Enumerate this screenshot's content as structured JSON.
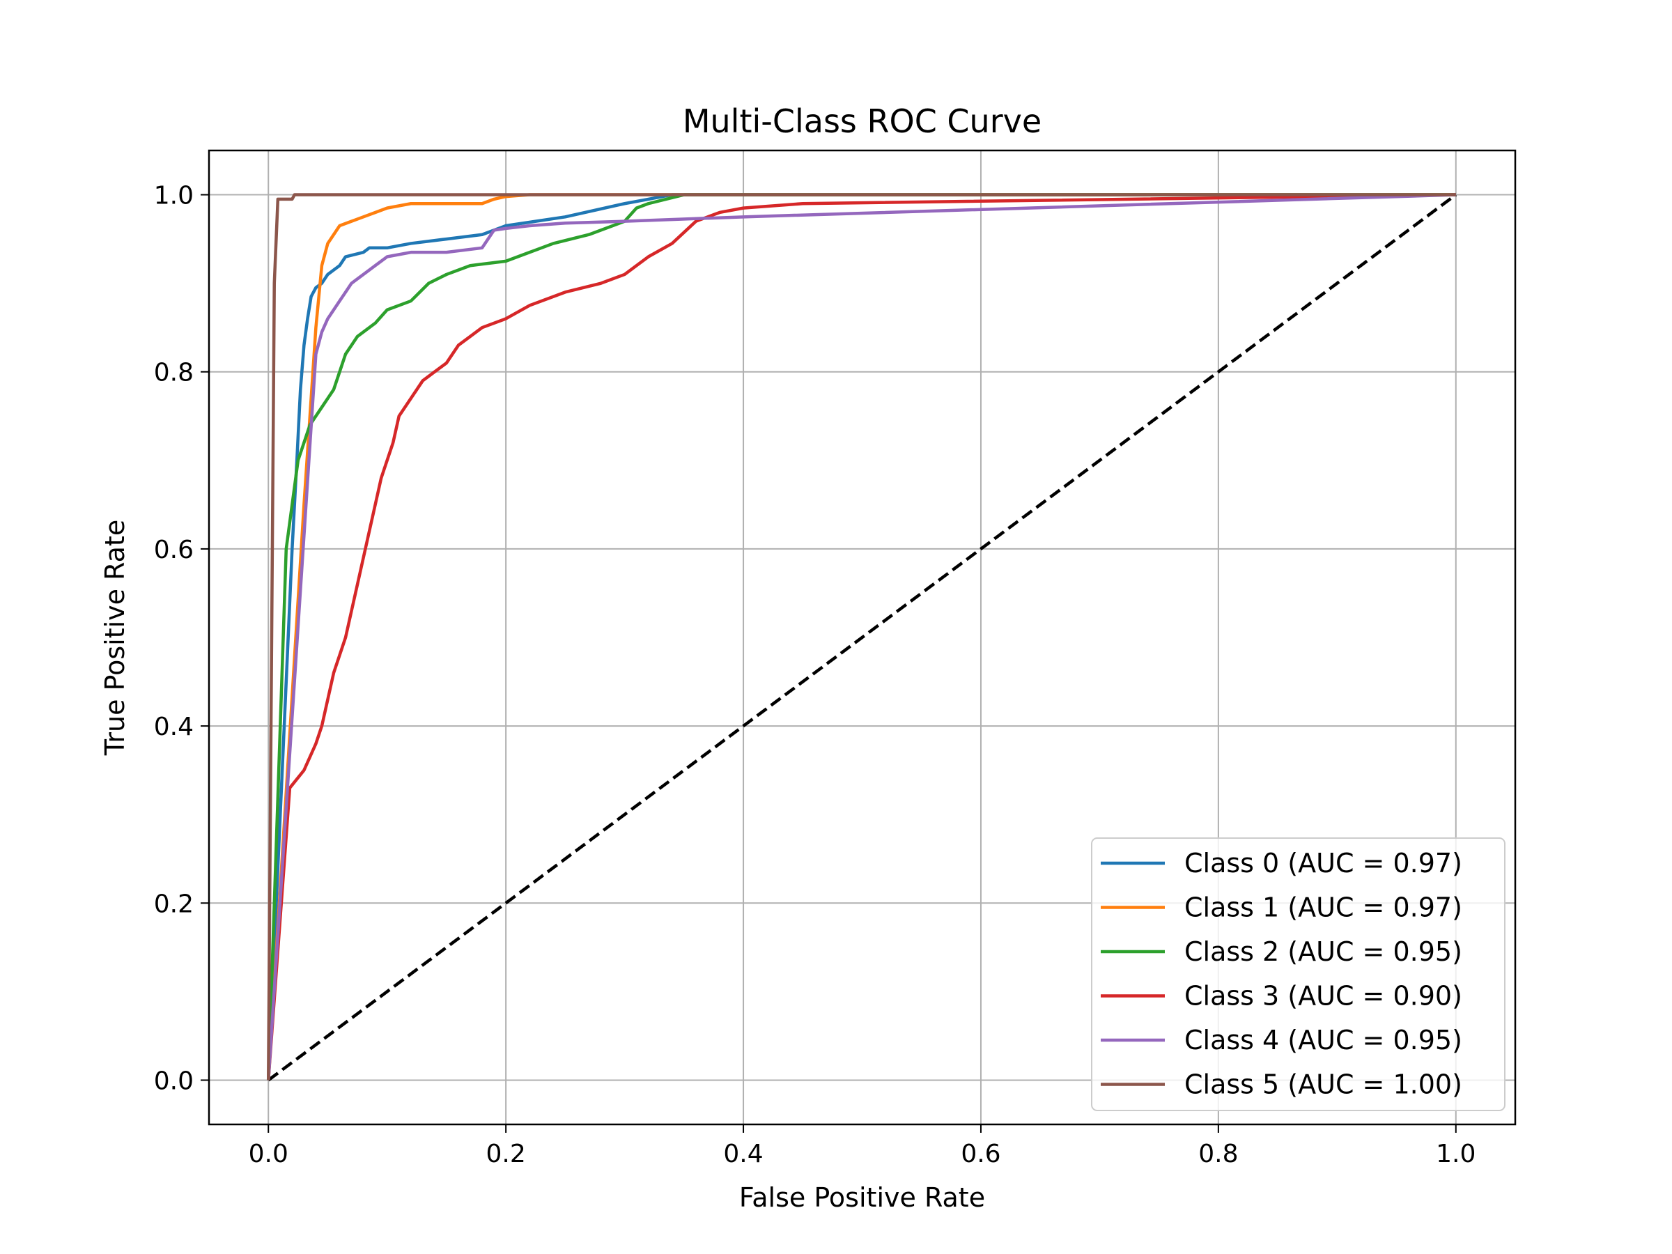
{
  "chart_data": {
    "type": "line",
    "title": "Multi-Class ROC Curve",
    "xlabel": "False Positive Rate",
    "ylabel": "True Positive Rate",
    "xlim": [
      -0.05,
      1.05
    ],
    "ylim": [
      -0.05,
      1.05
    ],
    "xticks": [
      "0.0",
      "0.2",
      "0.4",
      "0.6",
      "0.8",
      "1.0"
    ],
    "yticks": [
      "0.0",
      "0.2",
      "0.4",
      "0.6",
      "0.8",
      "1.0"
    ],
    "grid": true,
    "legend_position": "lower-right",
    "series": [
      {
        "name": "Class 0 (AUC = 0.97)",
        "color": "#1f77b4",
        "x": [
          0.0,
          0.02,
          0.024,
          0.027,
          0.03,
          0.033,
          0.036,
          0.04,
          0.045,
          0.05,
          0.06,
          0.065,
          0.08,
          0.085,
          0.1,
          0.12,
          0.15,
          0.18,
          0.2,
          0.25,
          0.3,
          0.32,
          0.34,
          1.0
        ],
        "y": [
          0.0,
          0.6,
          0.7,
          0.78,
          0.83,
          0.86,
          0.885,
          0.895,
          0.9,
          0.91,
          0.92,
          0.93,
          0.935,
          0.94,
          0.94,
          0.945,
          0.95,
          0.955,
          0.965,
          0.975,
          0.99,
          0.995,
          1.0,
          1.0
        ]
      },
      {
        "name": "Class 1 (AUC = 0.97)",
        "color": "#ff7f0e",
        "x": [
          0.0,
          0.03,
          0.035,
          0.04,
          0.045,
          0.05,
          0.055,
          0.06,
          0.07,
          0.08,
          0.09,
          0.1,
          0.12,
          0.15,
          0.18,
          0.19,
          0.2,
          0.22,
          1.0
        ],
        "y": [
          0.0,
          0.65,
          0.75,
          0.85,
          0.92,
          0.945,
          0.955,
          0.965,
          0.97,
          0.975,
          0.98,
          0.985,
          0.99,
          0.99,
          0.99,
          0.995,
          0.998,
          1.0,
          1.0
        ]
      },
      {
        "name": "Class 2 (AUC = 0.95)",
        "color": "#2ca02c",
        "x": [
          0.0,
          0.015,
          0.02,
          0.025,
          0.03,
          0.035,
          0.04,
          0.045,
          0.05,
          0.055,
          0.06,
          0.065,
          0.07,
          0.075,
          0.08,
          0.09,
          0.1,
          0.12,
          0.135,
          0.15,
          0.17,
          0.2,
          0.22,
          0.24,
          0.27,
          0.3,
          0.31,
          0.32,
          0.35,
          1.0
        ],
        "y": [
          0.0,
          0.6,
          0.65,
          0.7,
          0.72,
          0.74,
          0.75,
          0.76,
          0.77,
          0.78,
          0.8,
          0.82,
          0.83,
          0.84,
          0.845,
          0.855,
          0.87,
          0.88,
          0.9,
          0.91,
          0.92,
          0.925,
          0.935,
          0.945,
          0.955,
          0.97,
          0.985,
          0.99,
          1.0,
          1.0
        ]
      },
      {
        "name": "Class 3 (AUC = 0.90)",
        "color": "#d62728",
        "x": [
          0.0,
          0.018,
          0.03,
          0.04,
          0.045,
          0.05,
          0.055,
          0.06,
          0.065,
          0.07,
          0.075,
          0.08,
          0.085,
          0.09,
          0.095,
          0.1,
          0.105,
          0.11,
          0.12,
          0.13,
          0.14,
          0.15,
          0.16,
          0.17,
          0.18,
          0.2,
          0.22,
          0.25,
          0.28,
          0.3,
          0.32,
          0.34,
          0.36,
          0.37,
          0.38,
          0.4,
          0.45,
          1.0
        ],
        "y": [
          0.0,
          0.33,
          0.35,
          0.38,
          0.4,
          0.43,
          0.46,
          0.48,
          0.5,
          0.53,
          0.56,
          0.59,
          0.62,
          0.65,
          0.68,
          0.7,
          0.72,
          0.75,
          0.77,
          0.79,
          0.8,
          0.81,
          0.83,
          0.84,
          0.85,
          0.86,
          0.875,
          0.89,
          0.9,
          0.91,
          0.93,
          0.945,
          0.97,
          0.975,
          0.98,
          0.985,
          0.99,
          1.0
        ]
      },
      {
        "name": "Class 4 (AUC = 0.95)",
        "color": "#9467bd",
        "x": [
          0.0,
          0.04,
          0.045,
          0.05,
          0.055,
          0.06,
          0.065,
          0.07,
          0.08,
          0.09,
          0.1,
          0.12,
          0.15,
          0.18,
          0.19,
          0.2,
          0.22,
          0.25,
          0.3,
          0.4,
          1.0
        ],
        "y": [
          0.0,
          0.82,
          0.845,
          0.86,
          0.87,
          0.88,
          0.89,
          0.9,
          0.91,
          0.92,
          0.93,
          0.935,
          0.935,
          0.94,
          0.96,
          0.962,
          0.965,
          0.968,
          0.97,
          0.975,
          1.0
        ]
      },
      {
        "name": "Class 5 (AUC = 1.00)",
        "color": "#8c564b",
        "x": [
          0.0,
          0.005,
          0.008,
          0.01,
          0.02,
          0.022,
          1.0
        ],
        "y": [
          0.0,
          0.9,
          0.995,
          0.995,
          0.995,
          1.0,
          1.0
        ]
      }
    ],
    "reference_line": {
      "x": [
        0.0,
        1.0
      ],
      "y": [
        0.0,
        1.0
      ],
      "color": "#000000",
      "style": "dashed"
    }
  }
}
